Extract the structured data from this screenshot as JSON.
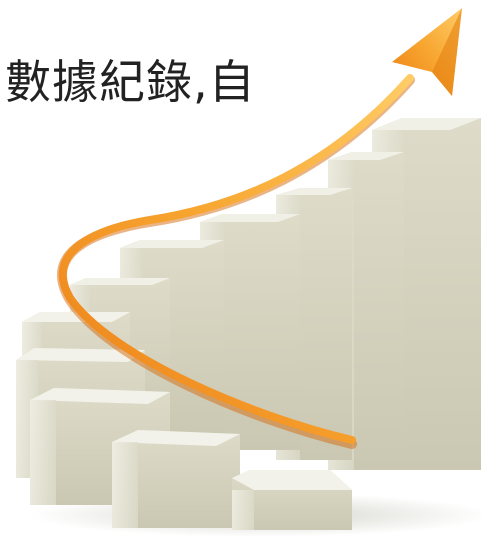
{
  "headline": {
    "text": "數據紀錄,自"
  },
  "illustration": {
    "subject": "rising-bar-steps-with-arrow",
    "colors": {
      "bar_front": "#d6d5c2",
      "bar_side": "#eae9dc",
      "bar_top": "#f1f0e6",
      "bar_shadow": "#b9b8a3",
      "arrow_light": "#ffcc66",
      "arrow_mid": "#f7a52f",
      "arrow_dark": "#ec7d18"
    }
  }
}
